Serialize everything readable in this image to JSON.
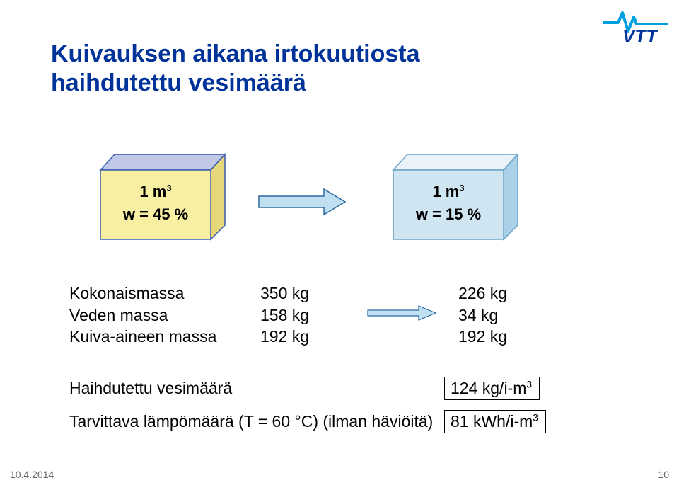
{
  "title_line1": "Kuivauksen aikana irtokuutiosta",
  "title_line2": "haihdutettu vesimäärä",
  "title_color": "#003399",
  "title_fontsize": 34,
  "logo": {
    "text": "VTT",
    "text_color": "#003399",
    "spark_color": "#00a0e0"
  },
  "cube1": {
    "top_line": "1 m",
    "top_exp": "3",
    "bottom": "w = 45 %",
    "face_fill": "#f9efa3",
    "side_fill": "#e6d77a",
    "top_fill": "#c1c9e8",
    "stroke": "#3a5bb0"
  },
  "cube2": {
    "top_line": "1 m",
    "top_exp": "3",
    "bottom": "w = 15 %",
    "face_fill": "#cfe6f2",
    "side_fill": "#a9d1e8",
    "top_fill": "#eaf3fa",
    "stroke": "#6aa2c4"
  },
  "cube_arrow": {
    "fill": "#c0dff0",
    "stroke": "#2a6aa0"
  },
  "mass_table": {
    "rows": [
      {
        "label": "Kokonaismassa",
        "v1": "350 kg",
        "v2": "226 kg",
        "arrow": false
      },
      {
        "label": "Veden massa",
        "v1": "158 kg",
        "v2": "34 kg",
        "arrow": true
      },
      {
        "label": "Kuiva-aineen massa",
        "v1": "192 kg",
        "v2": "192 kg",
        "arrow": false
      }
    ],
    "arrow_fill": "#c0dff0",
    "arrow_stroke": "#2a6aa0",
    "fontsize": 23
  },
  "results": {
    "label_width": 530,
    "rows": [
      {
        "label": "Haihdutettu vesimäärä",
        "value": "124 kg/i-m",
        "exp": "3"
      },
      {
        "label": "Tarvittava lämpömäärä (T = 60 °C) (ilman häviöitä)",
        "value": "81 kWh/i-m",
        "exp": "3"
      }
    ],
    "fontsize": 23
  },
  "footer": {
    "date": "10.4.2014",
    "page": "10",
    "color": "#666666",
    "fontsize": 14
  },
  "background_color": "#ffffff"
}
